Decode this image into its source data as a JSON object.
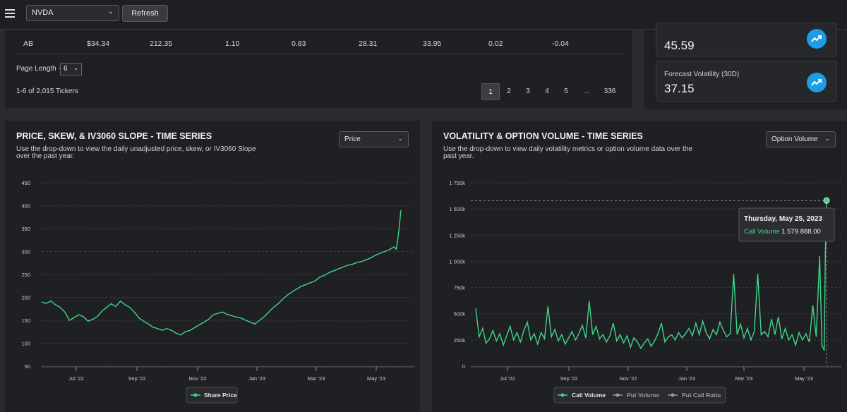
{
  "topbar": {
    "ticker": "NVDA",
    "refresh_label": "Refresh"
  },
  "table": {
    "row": [
      "AB",
      "$34.34",
      "212.35",
      "1.10",
      "0.83",
      "28.31",
      "33.95",
      "0.02",
      "-0.04"
    ],
    "page_length_label": "Page Length -",
    "page_length_value": "6",
    "ticker_count": "1-6 of 2,015 Tickers",
    "pages": [
      "1",
      "2",
      "3",
      "4",
      "5",
      "...",
      "336"
    ]
  },
  "metrics": [
    {
      "label": "",
      "value": "45.59",
      "icon": "trend-up-icon"
    },
    {
      "label": "Forecast Volatility (30D)",
      "value": "37.15",
      "icon": "trend-up-icon"
    }
  ],
  "left_chart": {
    "title": "PRICE, SKEW, & IV3060 SLOPE - TIME SERIES",
    "desc": "Use the drop-down to view the daily unadjusted price, skew, or IV3060 Slope over the past year.",
    "select": "Price",
    "legend": "Share Price"
  },
  "right_chart": {
    "title": "VOLATILITY & OPTION VOLUME - TIME SERIES",
    "desc": "Use the drop-down to view daily volatility metrics or option volume data over the past year.",
    "select": "Option Volume",
    "legend": [
      "Call Volume",
      "Put Volume",
      "Put Call Ratio"
    ],
    "tooltip_date": "Thursday, May 25, 2023",
    "tooltip_label": "Call Volume",
    "tooltip_value": "1 579 888.00"
  },
  "colors": {
    "series": "#3fd68a",
    "accent": "#1a9ee8"
  },
  "chart_data": [
    {
      "type": "line",
      "series": [
        {
          "name": "Share Price"
        }
      ],
      "x_ticks": [
        "Jul '22",
        "Sep '22",
        "Nov '22",
        "Jan '23",
        "Mar '23",
        "May '23"
      ],
      "y_ticks": [
        "450",
        "400",
        "350",
        "300",
        "250",
        "200",
        "150",
        "100",
        "50"
      ],
      "ylim": [
        50,
        450
      ],
      "points": [
        [
          0,
          190
        ],
        [
          4,
          187
        ],
        [
          8,
          192
        ],
        [
          12,
          184
        ],
        [
          16,
          178
        ],
        [
          20,
          168
        ],
        [
          24,
          150
        ],
        [
          28,
          156
        ],
        [
          32,
          162
        ],
        [
          36,
          158
        ],
        [
          40,
          148
        ],
        [
          44,
          152
        ],
        [
          48,
          158
        ],
        [
          52,
          170
        ],
        [
          56,
          178
        ],
        [
          60,
          186
        ],
        [
          64,
          180
        ],
        [
          68,
          192
        ],
        [
          72,
          184
        ],
        [
          76,
          178
        ],
        [
          80,
          168
        ],
        [
          84,
          155
        ],
        [
          88,
          148
        ],
        [
          92,
          142
        ],
        [
          96,
          135
        ],
        [
          100,
          132
        ],
        [
          104,
          128
        ],
        [
          108,
          132
        ],
        [
          112,
          128
        ],
        [
          116,
          122
        ],
        [
          120,
          118
        ],
        [
          124,
          125
        ],
        [
          128,
          128
        ],
        [
          132,
          134
        ],
        [
          136,
          140
        ],
        [
          140,
          146
        ],
        [
          144,
          152
        ],
        [
          148,
          162
        ],
        [
          152,
          165
        ],
        [
          156,
          168
        ],
        [
          160,
          163
        ],
        [
          164,
          160
        ],
        [
          168,
          157
        ],
        [
          172,
          155
        ],
        [
          176,
          150
        ],
        [
          180,
          146
        ],
        [
          184,
          142
        ],
        [
          188,
          150
        ],
        [
          192,
          158
        ],
        [
          196,
          168
        ],
        [
          200,
          178
        ],
        [
          204,
          186
        ],
        [
          208,
          196
        ],
        [
          212,
          205
        ],
        [
          216,
          212
        ],
        [
          220,
          218
        ],
        [
          224,
          224
        ],
        [
          228,
          228
        ],
        [
          232,
          232
        ],
        [
          236,
          236
        ],
        [
          240,
          244
        ],
        [
          244,
          248
        ],
        [
          248,
          254
        ],
        [
          252,
          258
        ],
        [
          256,
          262
        ],
        [
          260,
          266
        ],
        [
          264,
          270
        ],
        [
          268,
          272
        ],
        [
          272,
          276
        ],
        [
          276,
          278
        ],
        [
          280,
          282
        ],
        [
          284,
          286
        ],
        [
          288,
          292
        ],
        [
          292,
          296
        ],
        [
          296,
          300
        ],
        [
          300,
          304
        ],
        [
          304,
          310
        ],
        [
          306,
          305
        ],
        [
          308,
          340
        ],
        [
          310,
          390
        ]
      ]
    },
    {
      "type": "line",
      "series": [
        {
          "name": "Call Volume"
        },
        {
          "name": "Put Volume"
        },
        {
          "name": "Put Call Ratio"
        }
      ],
      "x_ticks": [
        "Jul '22",
        "Sep '22",
        "Nov '22",
        "Jan '23",
        "Mar '23",
        "May '23"
      ],
      "y_ticks": [
        "1 750k",
        "1 500k",
        "1 250k",
        "1 000k",
        "750k",
        "500k",
        "250k",
        "0"
      ],
      "ylim": [
        0,
        1750000
      ],
      "points": [
        [
          0,
          550
        ],
        [
          3,
          280
        ],
        [
          6,
          360
        ],
        [
          9,
          220
        ],
        [
          12,
          260
        ],
        [
          15,
          340
        ],
        [
          18,
          240
        ],
        [
          21,
          310
        ],
        [
          24,
          200
        ],
        [
          27,
          290
        ],
        [
          30,
          380
        ],
        [
          33,
          250
        ],
        [
          36,
          320
        ],
        [
          39,
          230
        ],
        [
          42,
          340
        ],
        [
          45,
          420
        ],
        [
          48,
          250
        ],
        [
          51,
          310
        ],
        [
          54,
          210
        ],
        [
          57,
          320
        ],
        [
          60,
          260
        ],
        [
          63,
          570
        ],
        [
          66,
          280
        ],
        [
          69,
          350
        ],
        [
          72,
          240
        ],
        [
          75,
          300
        ],
        [
          78,
          210
        ],
        [
          81,
          270
        ],
        [
          84,
          330
        ],
        [
          87,
          250
        ],
        [
          90,
          310
        ],
        [
          93,
          390
        ],
        [
          96,
          270
        ],
        [
          99,
          620
        ],
        [
          102,
          300
        ],
        [
          105,
          380
        ],
        [
          108,
          260
        ],
        [
          111,
          300
        ],
        [
          114,
          230
        ],
        [
          117,
          290
        ],
        [
          120,
          410
        ],
        [
          123,
          240
        ],
        [
          126,
          300
        ],
        [
          129,
          220
        ],
        [
          132,
          290
        ],
        [
          135,
          180
        ],
        [
          138,
          270
        ],
        [
          141,
          230
        ],
        [
          144,
          170
        ],
        [
          147,
          220
        ],
        [
          150,
          260
        ],
        [
          153,
          190
        ],
        [
          156,
          240
        ],
        [
          159,
          310
        ],
        [
          162,
          410
        ],
        [
          165,
          230
        ],
        [
          168,
          280
        ],
        [
          171,
          300
        ],
        [
          174,
          250
        ],
        [
          177,
          320
        ],
        [
          180,
          270
        ],
        [
          183,
          310
        ],
        [
          186,
          360
        ],
        [
          189,
          290
        ],
        [
          192,
          410
        ],
        [
          195,
          300
        ],
        [
          198,
          430
        ],
        [
          201,
          320
        ],
        [
          204,
          260
        ],
        [
          207,
          350
        ],
        [
          210,
          300
        ],
        [
          213,
          420
        ],
        [
          216,
          340
        ],
        [
          219,
          280
        ],
        [
          222,
          310
        ],
        [
          225,
          880
        ],
        [
          228,
          300
        ],
        [
          231,
          400
        ],
        [
          234,
          270
        ],
        [
          237,
          360
        ],
        [
          240,
          250
        ],
        [
          243,
          330
        ],
        [
          246,
          880
        ],
        [
          249,
          300
        ],
        [
          252,
          330
        ],
        [
          255,
          280
        ],
        [
          258,
          450
        ],
        [
          261,
          300
        ],
        [
          264,
          470
        ],
        [
          267,
          260
        ],
        [
          270,
          360
        ],
        [
          273,
          250
        ],
        [
          276,
          300
        ],
        [
          279,
          200
        ],
        [
          282,
          320
        ],
        [
          285,
          250
        ],
        [
          288,
          310
        ],
        [
          291,
          230
        ],
        [
          294,
          580
        ],
        [
          297,
          280
        ],
        [
          300,
          1050
        ],
        [
          302,
          200
        ],
        [
          304,
          150
        ],
        [
          305,
          1110
        ],
        [
          306,
          1580
        ]
      ]
    }
  ]
}
